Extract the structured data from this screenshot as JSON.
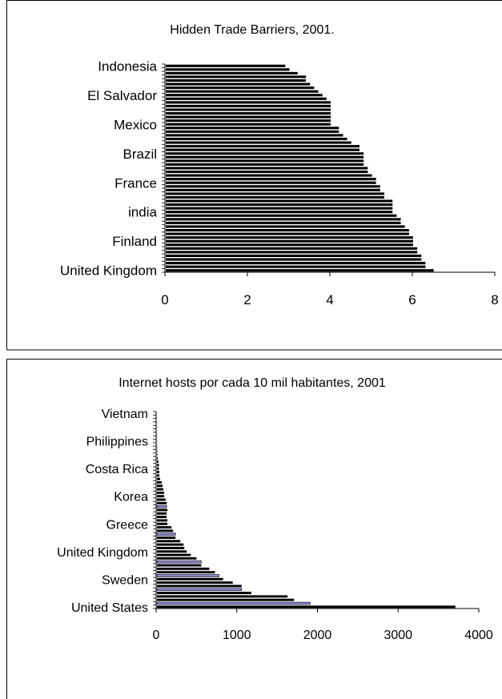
{
  "chart_data": [
    {
      "type": "bar",
      "orientation": "horizontal",
      "title": "Hidden Trade Barriers, 2001.",
      "categories": [
        "United Kingdom",
        "",
        "",
        "",
        "",
        "",
        "",
        "",
        "Finland",
        "",
        "",
        "",
        "",
        "",
        "",
        "",
        "india",
        "",
        "",
        "",
        "",
        "",
        "",
        "",
        "France",
        "",
        "",
        "",
        "",
        "",
        "",
        "",
        "Brazil",
        "",
        "",
        "",
        "",
        "",
        "",
        "",
        "Mexico",
        "",
        "",
        "",
        "",
        "",
        "",
        "",
        "El Salvador",
        "",
        "",
        "",
        "",
        "",
        "",
        "",
        "Indonesia"
      ],
      "values": [
        6.5,
        6.3,
        6.3,
        6.2,
        6.2,
        6.1,
        6.1,
        6.0,
        6.0,
        6.0,
        5.9,
        5.9,
        5.8,
        5.7,
        5.7,
        5.6,
        5.5,
        5.5,
        5.5,
        5.5,
        5.3,
        5.3,
        5.2,
        5.2,
        5.1,
        5.1,
        5.0,
        4.9,
        4.9,
        4.8,
        4.8,
        4.8,
        4.8,
        4.7,
        4.7,
        4.5,
        4.4,
        4.3,
        4.2,
        4.2,
        4.0,
        4.0,
        4.0,
        4.0,
        4.0,
        4.0,
        4.0,
        3.9,
        3.8,
        3.7,
        3.6,
        3.5,
        3.4,
        3.4,
        3.2,
        3.0,
        2.9
      ],
      "xlim": [
        0,
        8
      ],
      "xticks": [
        "0",
        "2",
        "4",
        "6",
        "8"
      ],
      "bar_color": "#000000",
      "grid": false,
      "legend": "none"
    },
    {
      "type": "bar",
      "orientation": "horizontal",
      "title": "Internet hosts por cada 10 mil habitantes, 2001",
      "categories": [
        "United States",
        "",
        "",
        "",
        "",
        "",
        "",
        "",
        "Sweden",
        "",
        "",
        "",
        "",
        "",
        "",
        "",
        "United Kingdom",
        "",
        "",
        "",
        "",
        "",
        "",
        "",
        "Greece",
        "",
        "",
        "",
        "",
        "",
        "",
        "",
        "Korea",
        "",
        "",
        "",
        "",
        "",
        "",
        "",
        "Costa Rica",
        "",
        "",
        "",
        "",
        "",
        "",
        "",
        "Philippines",
        "",
        "",
        "",
        "",
        "",
        "",
        "",
        "Vietnam"
      ],
      "values": [
        3700,
        1900,
        1700,
        1620,
        1170,
        1050,
        1050,
        940,
        820,
        770,
        720,
        650,
        550,
        550,
        490,
        420,
        370,
        340,
        330,
        290,
        230,
        230,
        200,
        180,
        130,
        130,
        120,
        120,
        130,
        120,
        120,
        110,
        90,
        90,
        80,
        70,
        60,
        40,
        30,
        30,
        25,
        25,
        20,
        10,
        6,
        5,
        4,
        3,
        2,
        2,
        1.5,
        1.2,
        1,
        0.8,
        0.5,
        0.4,
        0.2
      ],
      "highlight_indices": [
        1,
        5,
        9,
        13,
        21,
        29
      ],
      "xlim": [
        0,
        4000
      ],
      "xticks": [
        "0",
        "1000",
        "2000",
        "3000",
        "4000"
      ],
      "bar_color": "#000000",
      "highlight_color": "#8a8ad6",
      "grid": false,
      "legend": "none"
    }
  ]
}
